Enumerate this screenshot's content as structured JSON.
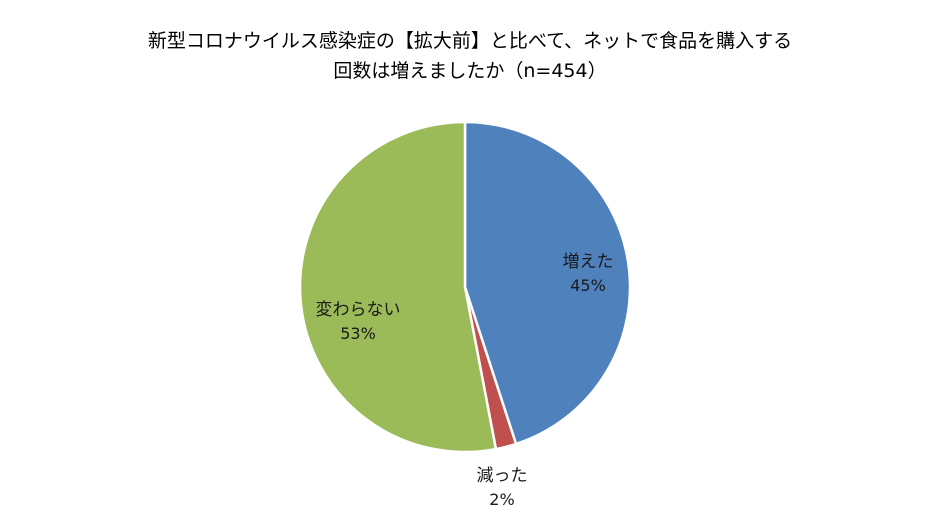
{
  "chart_data": {
    "type": "pie",
    "title": "新型コロナウイルス感染症の【拡大前】と比べて、ネットで食品を購入する回数は増えましたか（n=454）",
    "title_lines": [
      "新型コロナウイルス感染症の【拡大前】と比べて、ネットで食品を購入する",
      "回数は増えましたか（n=454）"
    ],
    "n": 454,
    "categories": [
      "増えた",
      "減った",
      "変わらない"
    ],
    "values": [
      45,
      2,
      53
    ],
    "value_labels": [
      "45%",
      "2%",
      "53%"
    ],
    "colors": [
      "#4F81BD",
      "#C0504D",
      "#9BBB59"
    ],
    "start_angle": "top, clockwise",
    "legend": "none (data labels)"
  },
  "labels": {
    "increased": {
      "name": "増えた",
      "pct": "45%"
    },
    "decreased": {
      "name": "減った",
      "pct": "2%"
    },
    "unchanged": {
      "name": "変わらない",
      "pct": "53%"
    }
  }
}
